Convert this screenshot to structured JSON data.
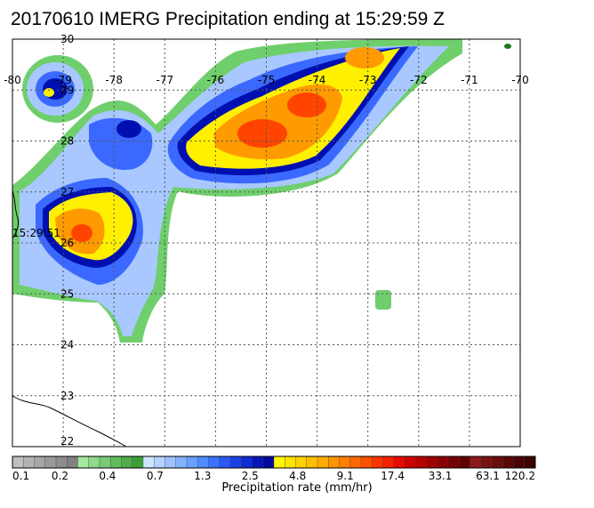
{
  "title": "20170610 IMERG Precipitation ending at 15:29:59 Z",
  "map": {
    "lon_range": [
      -80,
      -70
    ],
    "lat_range": [
      22,
      30
    ],
    "lon_ticks": [
      "-80",
      "-79",
      "-78",
      "-77",
      "-76",
      "-75",
      "-74",
      "-73",
      "-72",
      "-71",
      "-70"
    ],
    "lat_ticks": [
      "22",
      "23",
      "24",
      "25",
      "26",
      "27",
      "28",
      "29",
      "30"
    ],
    "grid": "dotted",
    "time_label": "15:29:51"
  },
  "colorbar": {
    "title": "Precipitation rate (mm/hr)",
    "labels": [
      "0.1",
      "0.2",
      "0.4",
      "0.7",
      "1.3",
      "2.5",
      "4.8",
      "9.1",
      "17.4",
      "33.1",
      "63.1",
      "120.2"
    ],
    "colors": [
      "#bfbfbf",
      "#b3b3b3",
      "#a6a6a6",
      "#9a9a9a",
      "#8e8e8e",
      "#828282",
      "#a5e8a0",
      "#8fd98a",
      "#79ca74",
      "#64bb5f",
      "#4fac4a",
      "#3b9e37",
      "#cfe4ff",
      "#b6d4ff",
      "#9cc3ff",
      "#83b2ff",
      "#699fff",
      "#4f8cff",
      "#3a72ff",
      "#2a58f5",
      "#1b40e6",
      "#0f2bd3",
      "#0616b8",
      "#000a9c",
      "#fff700",
      "#ffe500",
      "#ffd200",
      "#ffbf00",
      "#ffab00",
      "#ff9600",
      "#ff7f00",
      "#ff6800",
      "#ff5000",
      "#ff3500",
      "#f81e00",
      "#e80b00",
      "#d00000",
      "#b80000",
      "#a00000",
      "#8a0000",
      "#760000",
      "#620000",
      "#8b1a1a",
      "#7a1212",
      "#6a0c0c",
      "#5a0707",
      "#4a0404",
      "#3a0202"
    ]
  }
}
